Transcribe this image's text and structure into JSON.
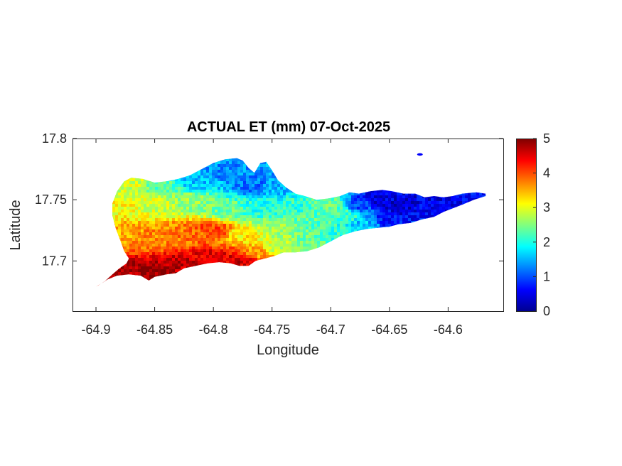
{
  "chart_data": {
    "type": "heatmap",
    "title": "ACTUAL ET (mm) 07-Oct-2025",
    "xlabel": "Longitude",
    "ylabel": "Latitude",
    "xlim": [
      -64.92,
      -64.553
    ],
    "ylim": [
      17.659,
      17.8
    ],
    "x_ticks": [
      -64.9,
      -64.85,
      -64.8,
      -64.75,
      -64.7,
      -64.65,
      -64.6
    ],
    "x_tick_labels": [
      "-64.9",
      "-64.85",
      "-64.8",
      "-64.75",
      "-64.7",
      "-64.65",
      "-64.6"
    ],
    "y_ticks": [
      17.7,
      17.75,
      17.8
    ],
    "y_tick_labels": [
      "17.7",
      "17.75",
      "17.8"
    ],
    "colorbar": {
      "colormap": "jet",
      "range": [
        0,
        5
      ],
      "ticks": [
        0,
        1,
        2,
        3,
        4,
        5
      ],
      "tick_labels": [
        "0",
        "1",
        "2",
        "3",
        "4",
        "5"
      ]
    },
    "grid": false,
    "island_outline": [
      [
        -64.9,
        17.679
      ],
      [
        -64.893,
        17.683
      ],
      [
        -64.886,
        17.689
      ],
      [
        -64.88,
        17.694
      ],
      [
        -64.874,
        17.698
      ],
      [
        -64.872,
        17.702
      ],
      [
        -64.876,
        17.708
      ],
      [
        -64.879,
        17.716
      ],
      [
        -64.883,
        17.726
      ],
      [
        -64.886,
        17.737
      ],
      [
        -64.886,
        17.747
      ],
      [
        -64.882,
        17.757
      ],
      [
        -64.876,
        17.765
      ],
      [
        -64.87,
        17.768
      ],
      [
        -64.86,
        17.767
      ],
      [
        -64.85,
        17.764
      ],
      [
        -64.84,
        17.765
      ],
      [
        -64.83,
        17.767
      ],
      [
        -64.82,
        17.77
      ],
      [
        -64.81,
        17.775
      ],
      [
        -64.8,
        17.78
      ],
      [
        -64.79,
        17.783
      ],
      [
        -64.78,
        17.784
      ],
      [
        -64.775,
        17.782
      ],
      [
        -64.77,
        17.776
      ],
      [
        -64.765,
        17.772
      ],
      [
        -64.76,
        17.78
      ],
      [
        -64.755,
        17.781
      ],
      [
        -64.75,
        17.774
      ],
      [
        -64.745,
        17.766
      ],
      [
        -64.738,
        17.76
      ],
      [
        -64.73,
        17.755
      ],
      [
        -64.722,
        17.753
      ],
      [
        -64.712,
        17.75
      ],
      [
        -64.702,
        17.751
      ],
      [
        -64.692,
        17.753
      ],
      [
        -64.684,
        17.756
      ],
      [
        -64.676,
        17.755
      ],
      [
        -64.666,
        17.757
      ],
      [
        -64.656,
        17.758
      ],
      [
        -64.648,
        17.757
      ],
      [
        -64.638,
        17.755
      ],
      [
        -64.628,
        17.755
      ],
      [
        -64.62,
        17.752
      ],
      [
        -64.612,
        17.753
      ],
      [
        -64.604,
        17.752
      ],
      [
        -64.596,
        17.753
      ],
      [
        -64.588,
        17.755
      ],
      [
        -64.576,
        17.756
      ],
      [
        -64.568,
        17.755
      ],
      [
        -64.568,
        17.753
      ],
      [
        -64.578,
        17.75
      ],
      [
        -64.588,
        17.746
      ],
      [
        -64.596,
        17.743
      ],
      [
        -64.604,
        17.74
      ],
      [
        -64.612,
        17.736
      ],
      [
        -64.622,
        17.734
      ],
      [
        -64.632,
        17.731
      ],
      [
        -64.642,
        17.73
      ],
      [
        -64.65,
        17.728
      ],
      [
        -64.66,
        17.727
      ],
      [
        -64.67,
        17.726
      ],
      [
        -64.68,
        17.724
      ],
      [
        -64.69,
        17.721
      ],
      [
        -64.7,
        17.716
      ],
      [
        -64.71,
        17.711
      ],
      [
        -64.72,
        17.708
      ],
      [
        -64.73,
        17.707
      ],
      [
        -64.74,
        17.707
      ],
      [
        -64.748,
        17.704
      ],
      [
        -64.756,
        17.702
      ],
      [
        -64.764,
        17.7
      ],
      [
        -64.77,
        17.696
      ],
      [
        -64.778,
        17.696
      ],
      [
        -64.785,
        17.698
      ],
      [
        -64.795,
        17.699
      ],
      [
        -64.805,
        17.698
      ],
      [
        -64.815,
        17.696
      ],
      [
        -64.825,
        17.694
      ],
      [
        -64.832,
        17.69
      ],
      [
        -64.84,
        17.689
      ],
      [
        -64.85,
        17.687
      ],
      [
        -64.855,
        17.684
      ],
      [
        -64.862,
        17.688
      ],
      [
        -64.872,
        17.689
      ],
      [
        -64.882,
        17.688
      ],
      [
        -64.89,
        17.685
      ],
      [
        -64.898,
        17.68
      ]
    ],
    "islet": {
      "lon": -64.624,
      "lat": 17.787,
      "value": 0.6
    },
    "et_pattern": [
      {
        "lon": -64.9,
        "lat": 17.68,
        "value": 4.6
      },
      {
        "lon": -64.878,
        "lat": 17.688,
        "value": 4.8
      },
      {
        "lon": -64.855,
        "lat": 17.69,
        "value": 4.9
      },
      {
        "lon": -64.83,
        "lat": 17.696,
        "value": 4.7
      },
      {
        "lon": -64.8,
        "lat": 17.702,
        "value": 4.5
      },
      {
        "lon": -64.775,
        "lat": 17.7,
        "value": 4.6
      },
      {
        "lon": -64.76,
        "lat": 17.706,
        "value": 3.6
      },
      {
        "lon": -64.745,
        "lat": 17.71,
        "value": 2.8
      },
      {
        "lon": -64.72,
        "lat": 17.712,
        "value": 2.4
      },
      {
        "lon": -64.69,
        "lat": 17.722,
        "value": 2.1
      },
      {
        "lon": -64.67,
        "lat": 17.728,
        "value": 1.6
      },
      {
        "lon": -64.88,
        "lat": 17.722,
        "value": 3.5
      },
      {
        "lon": -64.85,
        "lat": 17.718,
        "value": 3.7
      },
      {
        "lon": -64.82,
        "lat": 17.722,
        "value": 3.8
      },
      {
        "lon": -64.8,
        "lat": 17.725,
        "value": 4.1
      },
      {
        "lon": -64.775,
        "lat": 17.722,
        "value": 3.2
      },
      {
        "lon": -64.745,
        "lat": 17.728,
        "value": 2.6
      },
      {
        "lon": -64.715,
        "lat": 17.732,
        "value": 2.3
      },
      {
        "lon": -64.69,
        "lat": 17.738,
        "value": 2.2
      },
      {
        "lon": -64.88,
        "lat": 17.745,
        "value": 3.1
      },
      {
        "lon": -64.85,
        "lat": 17.748,
        "value": 2.9
      },
      {
        "lon": -64.82,
        "lat": 17.748,
        "value": 2.6
      },
      {
        "lon": -64.79,
        "lat": 17.742,
        "value": 2.4
      },
      {
        "lon": -64.76,
        "lat": 17.742,
        "value": 2.0
      },
      {
        "lon": -64.73,
        "lat": 17.745,
        "value": 2.1
      },
      {
        "lon": -64.7,
        "lat": 17.746,
        "value": 2.4
      },
      {
        "lon": -64.87,
        "lat": 17.762,
        "value": 2.9
      },
      {
        "lon": -64.845,
        "lat": 17.76,
        "value": 2.3
      },
      {
        "lon": -64.815,
        "lat": 17.765,
        "value": 1.6
      },
      {
        "lon": -64.79,
        "lat": 17.772,
        "value": 1.3
      },
      {
        "lon": -64.765,
        "lat": 17.762,
        "value": 1.2
      },
      {
        "lon": -64.748,
        "lat": 17.76,
        "value": 1.5
      },
      {
        "lon": -64.675,
        "lat": 17.745,
        "value": 1.0
      },
      {
        "lon": -64.66,
        "lat": 17.75,
        "value": 0.5
      },
      {
        "lon": -64.64,
        "lat": 17.745,
        "value": 0.4
      },
      {
        "lon": -64.62,
        "lat": 17.742,
        "value": 0.6
      },
      {
        "lon": -64.6,
        "lat": 17.748,
        "value": 0.5
      },
      {
        "lon": -64.58,
        "lat": 17.753,
        "value": 0.7
      },
      {
        "lon": -64.65,
        "lat": 17.732,
        "value": 0.7
      }
    ]
  }
}
